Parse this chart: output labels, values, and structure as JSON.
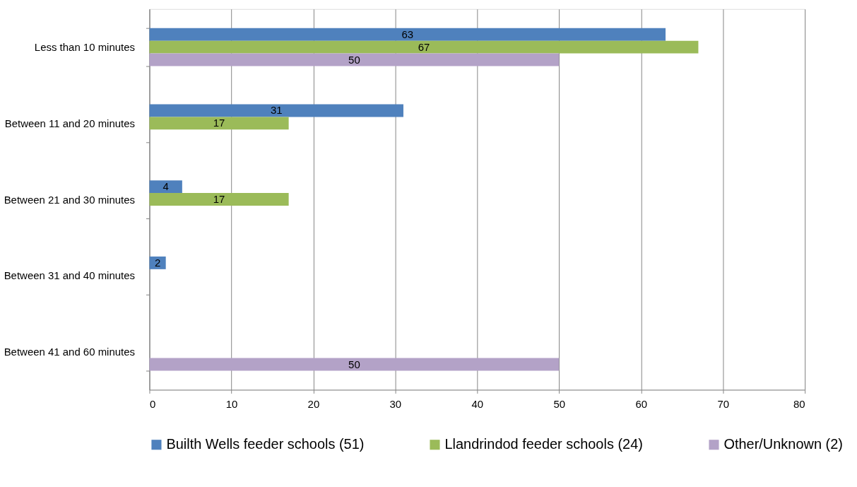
{
  "chart_data": {
    "type": "bar",
    "orientation": "horizontal",
    "categories": [
      "Less than 10 minutes",
      "Between 11 and 20 minutes",
      "Between 21 and 30 minutes",
      "Between 31 and 40 minutes",
      "Between 41 and 60 minutes"
    ],
    "series": [
      {
        "name": "Builth Wells feeder schools (51)",
        "color": "#4f81bd",
        "values": [
          63,
          31,
          4,
          2,
          null
        ]
      },
      {
        "name": "Llandrindod feeder schools (24)",
        "color": "#9bbb59",
        "values": [
          67,
          17,
          17,
          null,
          null
        ]
      },
      {
        "name": "Other/Unknown (2)",
        "color": "#b3a2c7",
        "values": [
          50,
          null,
          null,
          null,
          50
        ]
      }
    ],
    "xlim": [
      0,
      80
    ],
    "xticks": [
      0,
      10,
      20,
      30,
      40,
      50,
      60,
      70,
      80
    ],
    "grid": "x",
    "legend": "bottom",
    "data_labels": true
  }
}
